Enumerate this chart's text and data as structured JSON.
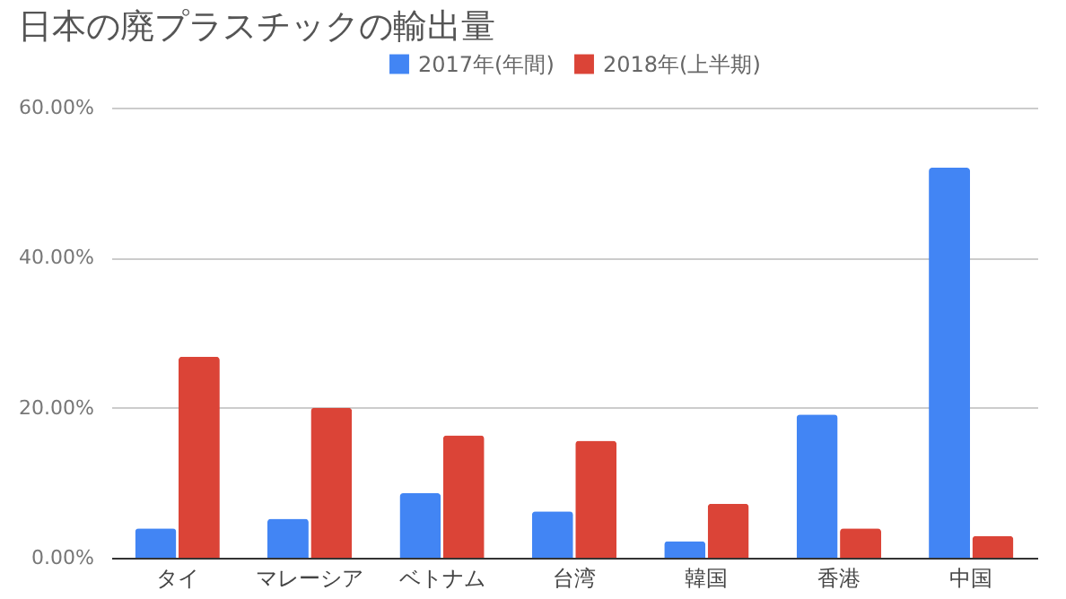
{
  "chart_data": {
    "type": "bar",
    "title": "日本の廃プラスチックの輸出量",
    "categories": [
      "タイ",
      "マレーシア",
      "ベトナム",
      "台湾",
      "韓国",
      "香港",
      "中国"
    ],
    "series": [
      {
        "name": "2017年(年間)",
        "color": "#4285f4",
        "values": [
          3.9,
          5.2,
          8.6,
          6.2,
          2.2,
          19.1,
          52.0
        ]
      },
      {
        "name": "2018年(上半期)",
        "color": "#db4437",
        "values": [
          26.8,
          20.0,
          16.3,
          15.6,
          7.2,
          3.9,
          2.9
        ]
      }
    ],
    "ylim": [
      0,
      60
    ],
    "yticks": [
      {
        "value": 0,
        "label": "0.00%"
      },
      {
        "value": 20,
        "label": "20.00%"
      },
      {
        "value": 40,
        "label": "40.00%"
      },
      {
        "value": 60,
        "label": "60.00%"
      }
    ],
    "grid": "y",
    "legend": "top"
  }
}
